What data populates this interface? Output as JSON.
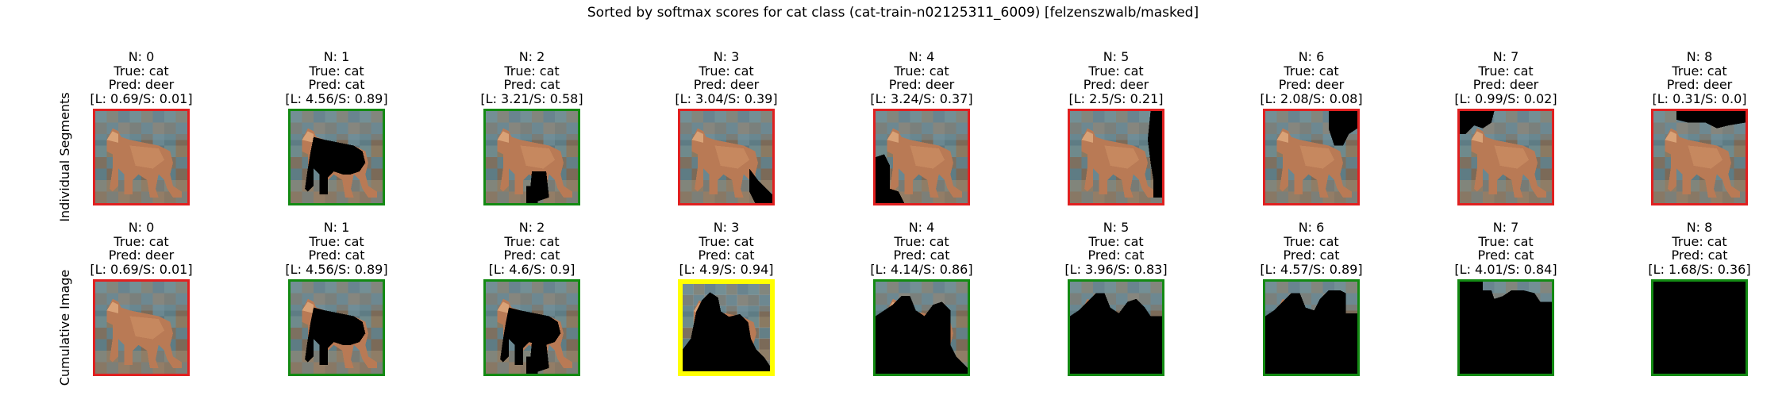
{
  "title": "Sorted by softmax scores for cat class (cat-train-n02125311_6009) [felzenszwalb/masked]",
  "colors": {
    "correct": "#138a13",
    "incorrect": "#e02020",
    "highlight": "#ffff00"
  },
  "rows": [
    {
      "label": "Individual Segments",
      "items": [
        {
          "n": "N: 0",
          "true": "True: cat",
          "pred": "Pred: deer",
          "scores": "[L: 0.69/S: 0.01]",
          "border": "incorrect",
          "mask": "none"
        },
        {
          "n": "N: 1",
          "true": "True: cat",
          "pred": "Pred: cat",
          "scores": "[L: 4.56/S: 0.89]",
          "border": "correct",
          "mask": "body"
        },
        {
          "n": "N: 2",
          "true": "True: cat",
          "pred": "Pred: cat",
          "scores": "[L: 3.21/S: 0.58]",
          "border": "correct",
          "mask": "legs"
        },
        {
          "n": "N: 3",
          "true": "True: cat",
          "pred": "Pred: deer",
          "scores": "[L: 3.04/S: 0.39]",
          "border": "incorrect",
          "mask": "tail"
        },
        {
          "n": "N: 4",
          "true": "True: cat",
          "pred": "Pred: deer",
          "scores": "[L: 3.24/S: 0.37]",
          "border": "incorrect",
          "mask": "bottom-left"
        },
        {
          "n": "N: 5",
          "true": "True: cat",
          "pred": "Pred: deer",
          "scores": "[L: 2.5/S: 0.21]",
          "border": "incorrect",
          "mask": "right-edge"
        },
        {
          "n": "N: 6",
          "true": "True: cat",
          "pred": "Pred: deer",
          "scores": "[L: 2.08/S: 0.08]",
          "border": "incorrect",
          "mask": "top-right"
        },
        {
          "n": "N: 7",
          "true": "True: cat",
          "pred": "Pred: deer",
          "scores": "[L: 0.99/S: 0.02]",
          "border": "incorrect",
          "mask": "top-left"
        },
        {
          "n": "N: 8",
          "true": "True: cat",
          "pred": "Pred: deer",
          "scores": "[L: 0.31/S: 0.0]",
          "border": "incorrect",
          "mask": "top-band"
        }
      ]
    },
    {
      "label": "Cumulative Image",
      "items": [
        {
          "n": "N: 0",
          "true": "True: cat",
          "pred": "Pred: deer",
          "scores": "[L: 0.69/S: 0.01]",
          "border": "incorrect",
          "mask": "none"
        },
        {
          "n": "N: 1",
          "true": "True: cat",
          "pred": "Pred: cat",
          "scores": "[L: 4.56/S: 0.89]",
          "border": "correct",
          "mask": "body"
        },
        {
          "n": "N: 2",
          "true": "True: cat",
          "pred": "Pred: cat",
          "scores": "[L: 4.6/S: 0.9]",
          "border": "correct",
          "mask": "body+legs"
        },
        {
          "n": "N: 3",
          "true": "True: cat",
          "pred": "Pred: cat",
          "scores": "[L: 4.9/S: 0.94]",
          "border": "highlight",
          "mask": "cum3"
        },
        {
          "n": "N: 4",
          "true": "True: cat",
          "pred": "Pred: cat",
          "scores": "[L: 4.14/S: 0.86]",
          "border": "correct",
          "mask": "cum4"
        },
        {
          "n": "N: 5",
          "true": "True: cat",
          "pred": "Pred: cat",
          "scores": "[L: 3.96/S: 0.83]",
          "border": "correct",
          "mask": "cum5"
        },
        {
          "n": "N: 6",
          "true": "True: cat",
          "pred": "Pred: cat",
          "scores": "[L: 4.57/S: 0.89]",
          "border": "correct",
          "mask": "cum6"
        },
        {
          "n": "N: 7",
          "true": "True: cat",
          "pred": "Pred: cat",
          "scores": "[L: 4.01/S: 0.84]",
          "border": "correct",
          "mask": "cum7"
        },
        {
          "n": "N: 8",
          "true": "True: cat",
          "pred": "Pred: cat",
          "scores": "[L: 1.68/S: 0.36]",
          "border": "correct",
          "mask": "all"
        }
      ]
    }
  ]
}
